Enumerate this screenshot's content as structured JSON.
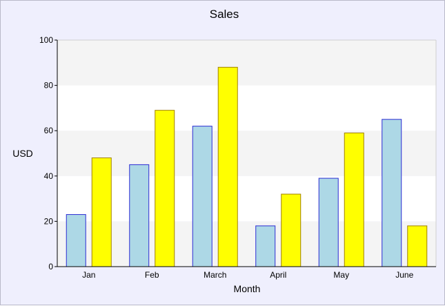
{
  "chart_data": {
    "type": "bar",
    "title": "Sales",
    "xlabel": "Month",
    "ylabel": "USD",
    "categories": [
      "Jan",
      "Feb",
      "March",
      "April",
      "May",
      "June"
    ],
    "series": [
      {
        "values": [
          23,
          45,
          62,
          18,
          39,
          65
        ],
        "color": "#add8e6",
        "stroke": "#2b2bd4"
      },
      {
        "values": [
          48,
          69,
          88,
          32,
          59,
          18
        ],
        "color": "#ffff00",
        "stroke": "#a08000"
      }
    ],
    "ylim": [
      0,
      100
    ],
    "yticks": [
      0,
      20,
      40,
      60,
      80,
      100
    ],
    "grid": "alternating horizontal bands",
    "band_colors": [
      "#f4f4f4",
      "#ffffff"
    ],
    "background": "#efeffd"
  }
}
